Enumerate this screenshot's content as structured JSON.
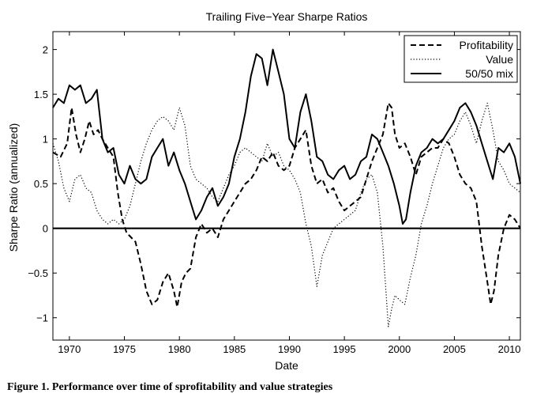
{
  "chart_data": {
    "type": "line",
    "title": "Trailing Five−Year Sharpe Ratios",
    "xlabel": "Date",
    "ylabel": "Sharpe Ratio (annualized)",
    "xlim": [
      1968.5,
      2011.0
    ],
    "ylim": [
      -1.25,
      2.2
    ],
    "xticks": [
      1970,
      1975,
      1980,
      1985,
      1990,
      1995,
      2000,
      2005,
      2010
    ],
    "yticks": [
      -1,
      -0.5,
      0,
      0.5,
      1,
      1.5,
      2
    ],
    "xtick_labels": [
      "1970",
      "1975",
      "1980",
      "1985",
      "1990",
      "1995",
      "2000",
      "2005",
      "2010"
    ],
    "ytick_labels": [
      "−1",
      "−0.5",
      "0",
      "0.5",
      "1",
      "1.5",
      "2"
    ],
    "zero_line": 0,
    "legend_position": "top-right",
    "series": [
      {
        "name": "Profitability",
        "style": "dashed",
        "x": [
          1968.5,
          1969.2,
          1969.8,
          1970.2,
          1970.6,
          1971.0,
          1971.4,
          1971.8,
          1972.2,
          1972.6,
          1973.0,
          1973.5,
          1974.0,
          1974.4,
          1974.8,
          1975.2,
          1975.6,
          1976.0,
          1976.5,
          1977.0,
          1977.5,
          1978.0,
          1978.5,
          1979.0,
          1979.5,
          1979.8,
          1980.2,
          1980.6,
          1981.0,
          1981.5,
          1982.0,
          1982.5,
          1983.0,
          1983.5,
          1984.0,
          1984.5,
          1985.0,
          1985.5,
          1986.0,
          1986.5,
          1987.0,
          1987.5,
          1988.0,
          1988.5,
          1989.0,
          1989.5,
          1990.0,
          1990.5,
          1991.0,
          1991.5,
          1992.0,
          1992.5,
          1993.0,
          1993.5,
          1994.0,
          1994.5,
          1995.0,
          1995.5,
          1996.0,
          1996.5,
          1997.0,
          1997.5,
          1998.0,
          1998.5,
          1999.0,
          1999.3,
          1999.6,
          2000.0,
          2000.5,
          2001.0,
          2001.5,
          2002.0,
          2002.5,
          2003.0,
          2003.5,
          2004.0,
          2004.5,
          2005.0,
          2005.5,
          2006.0,
          2006.5,
          2007.0,
          2007.5,
          2008.0,
          2008.3,
          2008.6,
          2009.0,
          2009.5,
          2010.0,
          2010.5,
          2011.0
        ],
        "y": [
          0.85,
          0.8,
          0.95,
          1.35,
          1.05,
          0.85,
          1.0,
          1.2,
          1.05,
          1.1,
          1.0,
          0.9,
          0.8,
          0.4,
          0.1,
          -0.05,
          -0.1,
          -0.15,
          -0.4,
          -0.7,
          -0.85,
          -0.8,
          -0.6,
          -0.5,
          -0.7,
          -0.88,
          -0.6,
          -0.5,
          -0.45,
          -0.1,
          0.05,
          -0.05,
          0.0,
          -0.1,
          0.1,
          0.2,
          0.3,
          0.4,
          0.5,
          0.55,
          0.65,
          0.8,
          0.75,
          0.85,
          0.7,
          0.65,
          0.7,
          0.9,
          1.0,
          1.1,
          0.7,
          0.5,
          0.55,
          0.4,
          0.45,
          0.3,
          0.2,
          0.25,
          0.3,
          0.35,
          0.55,
          0.75,
          0.9,
          1.05,
          1.4,
          1.35,
          1.05,
          0.9,
          0.95,
          0.8,
          0.6,
          0.8,
          0.85,
          0.9,
          0.9,
          1.0,
          0.95,
          0.8,
          0.6,
          0.5,
          0.45,
          0.3,
          -0.2,
          -0.6,
          -0.85,
          -0.7,
          -0.3,
          0.0,
          0.15,
          0.1,
          0.0
        ]
      },
      {
        "name": "Value",
        "style": "dotted",
        "x": [
          1968.5,
          1969.0,
          1969.5,
          1970.0,
          1970.5,
          1971.0,
          1971.5,
          1972.0,
          1972.5,
          1973.0,
          1973.5,
          1974.0,
          1974.5,
          1975.0,
          1975.5,
          1976.0,
          1976.5,
          1977.0,
          1977.5,
          1978.0,
          1978.5,
          1979.0,
          1979.5,
          1980.0,
          1980.5,
          1981.0,
          1981.5,
          1982.0,
          1982.5,
          1983.0,
          1983.5,
          1984.0,
          1984.5,
          1985.0,
          1985.5,
          1986.0,
          1986.5,
          1987.0,
          1987.5,
          1988.0,
          1988.5,
          1989.0,
          1989.5,
          1990.0,
          1990.5,
          1991.0,
          1991.5,
          1992.0,
          1992.5,
          1993.0,
          1993.5,
          1994.0,
          1994.5,
          1995.0,
          1995.5,
          1996.0,
          1996.5,
          1997.0,
          1997.5,
          1998.0,
          1998.5,
          1999.0,
          1999.3,
          1999.6,
          2000.0,
          2000.5,
          2001.0,
          2001.5,
          2002.0,
          2002.5,
          2003.0,
          2003.5,
          2004.0,
          2004.5,
          2005.0,
          2005.5,
          2006.0,
          2006.5,
          2007.0,
          2007.5,
          2008.0,
          2008.5,
          2009.0,
          2009.5,
          2010.0,
          2010.5,
          2011.0
        ],
        "y": [
          0.95,
          0.75,
          0.45,
          0.3,
          0.55,
          0.6,
          0.45,
          0.4,
          0.2,
          0.1,
          0.05,
          0.1,
          0.05,
          0.1,
          0.25,
          0.5,
          0.75,
          0.95,
          1.1,
          1.2,
          1.25,
          1.2,
          1.1,
          1.35,
          1.15,
          0.7,
          0.55,
          0.5,
          0.45,
          0.35,
          0.3,
          0.45,
          0.6,
          0.7,
          0.85,
          0.9,
          0.85,
          0.8,
          0.75,
          0.95,
          0.8,
          0.85,
          0.7,
          0.65,
          0.55,
          0.4,
          0.05,
          -0.2,
          -0.65,
          -0.3,
          -0.15,
          0.0,
          0.05,
          0.1,
          0.15,
          0.2,
          0.4,
          0.55,
          0.6,
          0.4,
          -0.2,
          -1.1,
          -0.9,
          -0.75,
          -0.8,
          -0.85,
          -0.55,
          -0.3,
          0.05,
          0.25,
          0.5,
          0.7,
          0.9,
          1.0,
          1.05,
          1.2,
          1.3,
          1.15,
          0.95,
          1.2,
          1.4,
          1.1,
          0.75,
          0.65,
          0.5,
          0.45,
          0.4
        ]
      },
      {
        "name": "50/50 mix",
        "style": "solid",
        "x": [
          1968.5,
          1969.0,
          1969.5,
          1970.0,
          1970.5,
          1971.0,
          1971.5,
          1972.0,
          1972.5,
          1973.0,
          1973.5,
          1974.0,
          1974.5,
          1975.0,
          1975.5,
          1976.0,
          1976.5,
          1977.0,
          1977.5,
          1978.0,
          1978.5,
          1979.0,
          1979.5,
          1980.0,
          1980.5,
          1981.0,
          1981.5,
          1982.0,
          1982.5,
          1983.0,
          1983.5,
          1984.0,
          1984.5,
          1985.0,
          1985.5,
          1986.0,
          1986.5,
          1987.0,
          1987.5,
          1988.0,
          1988.5,
          1989.0,
          1989.5,
          1990.0,
          1990.5,
          1991.0,
          1991.5,
          1992.0,
          1992.5,
          1993.0,
          1993.5,
          1994.0,
          1994.5,
          1995.0,
          1995.5,
          1996.0,
          1996.5,
          1997.0,
          1997.5,
          1998.0,
          1998.5,
          1999.0,
          1999.5,
          2000.0,
          2000.3,
          2000.6,
          2001.0,
          2001.5,
          2002.0,
          2002.5,
          2003.0,
          2003.5,
          2004.0,
          2004.5,
          2005.0,
          2005.5,
          2006.0,
          2006.5,
          2007.0,
          2007.5,
          2008.0,
          2008.5,
          2009.0,
          2009.5,
          2010.0,
          2010.5,
          2011.0
        ],
        "y": [
          1.35,
          1.45,
          1.4,
          1.6,
          1.55,
          1.6,
          1.4,
          1.45,
          1.55,
          1.0,
          0.85,
          0.9,
          0.6,
          0.5,
          0.7,
          0.55,
          0.5,
          0.55,
          0.8,
          0.9,
          1.0,
          0.7,
          0.85,
          0.65,
          0.5,
          0.3,
          0.1,
          0.2,
          0.35,
          0.45,
          0.25,
          0.35,
          0.5,
          0.8,
          1.0,
          1.3,
          1.7,
          1.95,
          1.9,
          1.6,
          2.0,
          1.75,
          1.5,
          1.0,
          0.9,
          1.3,
          1.5,
          1.2,
          0.8,
          0.75,
          0.6,
          0.55,
          0.65,
          0.7,
          0.55,
          0.6,
          0.75,
          0.8,
          1.05,
          1.0,
          0.85,
          0.7,
          0.5,
          0.25,
          0.05,
          0.1,
          0.4,
          0.7,
          0.85,
          0.9,
          1.0,
          0.95,
          1.0,
          1.1,
          1.2,
          1.35,
          1.4,
          1.3,
          1.15,
          0.95,
          0.75,
          0.55,
          0.9,
          0.85,
          0.95,
          0.8,
          0.5
        ]
      }
    ]
  },
  "caption": "Figure 1.  Performance over time of sprofitability and value strategies"
}
